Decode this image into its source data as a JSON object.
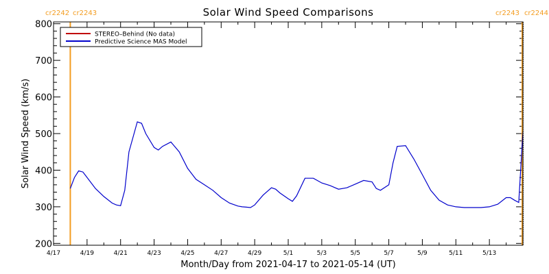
{
  "chart_data": {
    "type": "line",
    "title": "Solar Wind Speed Comparisons",
    "xlabel": "Month/Day from 2021-04-17 to 2021-05-14 (UT)",
    "ylabel": "Solar Wind Speed (km/s)",
    "ylim": [
      195,
      805
    ],
    "xlim": [
      "2021-04-17",
      "2021-05-15"
    ],
    "y_ticks": [
      200,
      300,
      400,
      500,
      600,
      700,
      800
    ],
    "x_ticks": [
      "4/17",
      "4/19",
      "4/21",
      "4/23",
      "4/25",
      "4/27",
      "4/29",
      "5/1",
      "5/3",
      "5/5",
      "5/7",
      "5/9",
      "5/11",
      "5/13"
    ],
    "grid": false,
    "legend_position": "top-left",
    "carrington_markers": [
      {
        "date": "2021-04-18T00:00",
        "left_label": "cr2242",
        "right_label": "cr2243"
      },
      {
        "date": "2021-05-14T23:00",
        "left_label": "cr2243",
        "right_label": "cr2244"
      }
    ],
    "series": [
      {
        "name": "STEREO–Behind (No data)",
        "color": "#c00000",
        "x": [],
        "y": []
      },
      {
        "name": "Predictive Science MAS Model",
        "color": "#0000cc",
        "x": [
          "2021-04-18T00:00",
          "2021-04-18T06:00",
          "2021-04-18T12:00",
          "2021-04-18T18:00",
          "2021-04-19T00:00",
          "2021-04-19T12:00",
          "2021-04-20T00:00",
          "2021-04-20T12:00",
          "2021-04-20T18:00",
          "2021-04-21T00:00",
          "2021-04-21T06:00",
          "2021-04-21T12:00",
          "2021-04-22T00:00",
          "2021-04-22T06:00",
          "2021-04-22T12:00",
          "2021-04-23T00:00",
          "2021-04-23T06:00",
          "2021-04-23T12:00",
          "2021-04-24T00:00",
          "2021-04-24T12:00",
          "2021-04-25T00:00",
          "2021-04-25T12:00",
          "2021-04-26T00:00",
          "2021-04-26T12:00",
          "2021-04-27T00:00",
          "2021-04-27T12:00",
          "2021-04-28T00:00",
          "2021-04-28T06:00",
          "2021-04-28T12:00",
          "2021-04-28T18:00",
          "2021-04-29T00:00",
          "2021-04-29T12:00",
          "2021-04-30T00:00",
          "2021-04-30T06:00",
          "2021-04-30T12:00",
          "2021-05-01T00:00",
          "2021-05-01T06:00",
          "2021-05-01T12:00",
          "2021-05-02T00:00",
          "2021-05-02T12:00",
          "2021-05-03T00:00",
          "2021-05-03T12:00",
          "2021-05-04T00:00",
          "2021-05-04T12:00",
          "2021-05-05T00:00",
          "2021-05-05T12:00",
          "2021-05-06T00:00",
          "2021-05-06T06:00",
          "2021-05-06T12:00",
          "2021-05-07T00:00",
          "2021-05-07T06:00",
          "2021-05-07T12:00",
          "2021-05-08T00:00",
          "2021-05-08T12:00",
          "2021-05-09T00:00",
          "2021-05-09T12:00",
          "2021-05-10T00:00",
          "2021-05-10T12:00",
          "2021-05-11T00:00",
          "2021-05-11T12:00",
          "2021-05-12T00:00",
          "2021-05-12T12:00",
          "2021-05-13T00:00",
          "2021-05-13T12:00",
          "2021-05-14T00:00",
          "2021-05-14T06:00",
          "2021-05-14T12:00",
          "2021-05-14T18:00",
          "2021-05-15T00:00"
        ],
        "y": [
          350,
          380,
          398,
          395,
          380,
          350,
          328,
          310,
          305,
          303,
          345,
          450,
          532,
          528,
          500,
          462,
          455,
          465,
          477,
          450,
          405,
          375,
          360,
          345,
          325,
          310,
          302,
          300,
          299,
          298,
          305,
          332,
          352,
          348,
          338,
          322,
          315,
          330,
          378,
          378,
          365,
          358,
          348,
          352,
          362,
          372,
          368,
          350,
          345,
          360,
          420,
          465,
          467,
          430,
          388,
          345,
          318,
          305,
          300,
          298,
          298,
          298,
          300,
          307,
          325,
          325,
          318,
          312,
          505
        ]
      }
    ]
  }
}
